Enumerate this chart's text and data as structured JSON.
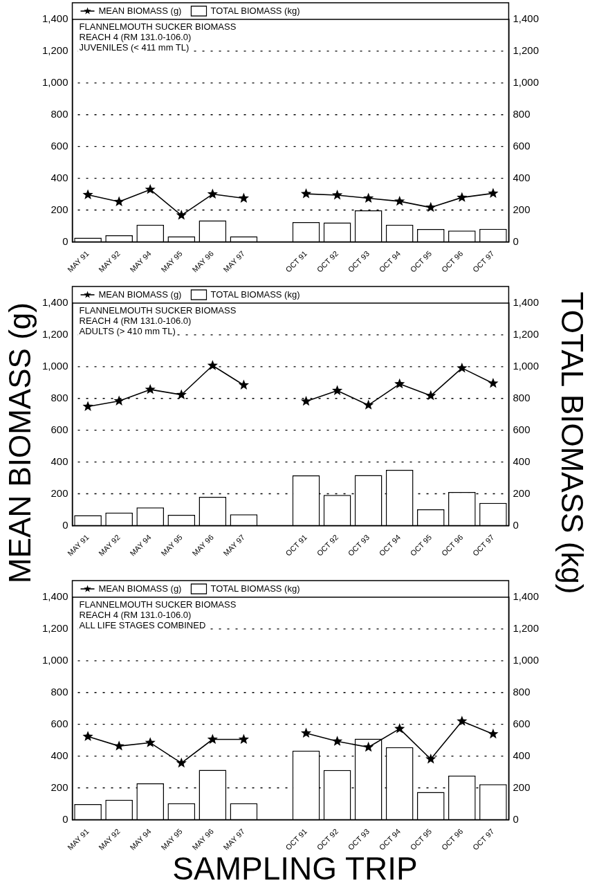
{
  "chart_data": [
    {
      "type": "bar",
      "title": "FLANNELMOUTH SUCKER BIOMASS",
      "subtitle": "REACH 4 (RM 131.0-106.0)",
      "annotations": [
        "JUVENILES (< 411 mm TL)"
      ],
      "categories": [
        "MAY 91",
        "MAY 92",
        "MAY 94",
        "MAY 95",
        "MAY 96",
        "MAY 97",
        null,
        "OCT 91",
        "OCT 92",
        "OCT 93",
        "OCT 94",
        "OCT 95",
        "OCT 96",
        "OCT 97"
      ],
      "series": [
        {
          "name": "MEAN BIOMASS (g)",
          "type": "line",
          "color": "#000000",
          "values": [
            296,
            252,
            329,
            167,
            300,
            274,
            null,
            302,
            294,
            274,
            255,
            216,
            279,
            305
          ]
        },
        {
          "name": "TOTAL BIOMASS (kg)",
          "type": "bar",
          "axis": "y2",
          "color": "#ffffff",
          "values": [
            26,
            41,
            107,
            35,
            135,
            35,
            null,
            124,
            122,
            198,
            107,
            80,
            70,
            81
          ]
        }
      ],
      "ylim": [
        0,
        1400
      ],
      "yticks": [
        0,
        200,
        400,
        600,
        800,
        {
          "value": 1000,
          "label": "1,000"
        },
        {
          "value": 1200,
          "label": "1,200"
        },
        {
          "value": 1400,
          "label": "1,400"
        }
      ],
      "y2lim": [
        0,
        1400
      ],
      "y2ticks": [
        0,
        200,
        400,
        600,
        800,
        {
          "value": 1000,
          "label": "1,000"
        },
        {
          "value": 1200,
          "label": "1,200"
        },
        {
          "value": 1400,
          "label": "1,400"
        }
      ],
      "grid": "y",
      "legend": "top",
      "marker": "star",
      "line_style": "solid"
    },
    {
      "type": "bar",
      "title": "FLANNELMOUTH SUCKER BIOMASS",
      "subtitle": "REACH 4 (RM 131.0-106.0)",
      "annotations": [
        "ADULTS (> 410 mm TL)"
      ],
      "ylabel": "MEAN BIOMASS (g)",
      "y2label": "TOTAL BIOMASS (kg)",
      "categories": [
        "MAY 91",
        "MAY 92",
        "MAY 94",
        "MAY 95",
        "MAY 96",
        "MAY 97",
        null,
        "OCT 91",
        "OCT 92",
        "OCT 93",
        "OCT 94",
        "OCT 95",
        "OCT 96",
        "OCT 97"
      ],
      "series": [
        {
          "name": "MEAN BIOMASS (g)",
          "type": "line",
          "color": "#000000",
          "values": [
            749,
            784,
            856,
            823,
            1007,
            884,
            null,
            782,
            849,
            758,
            891,
            817,
            991,
            895
          ]
        },
        {
          "name": "TOTAL BIOMASS (kg)",
          "type": "bar",
          "axis": "y2",
          "color": "#ffffff",
          "values": [
            65,
            81,
            114,
            67,
            181,
            70,
            null,
            315,
            192,
            318,
            350,
            102,
            211,
            142
          ]
        }
      ],
      "ylim": [
        0,
        1400
      ],
      "yticks": [
        0,
        200,
        400,
        600,
        800,
        {
          "value": 1000,
          "label": "1,000"
        },
        {
          "value": 1200,
          "label": "1,200"
        },
        {
          "value": 1400,
          "label": "1,400"
        }
      ],
      "y2lim": [
        0,
        1400
      ],
      "y2ticks": [
        0,
        200,
        400,
        600,
        800,
        {
          "value": 1000,
          "label": "1,000"
        },
        {
          "value": 1200,
          "label": "1,200"
        },
        {
          "value": 1400,
          "label": "1,400"
        }
      ],
      "grid": "y",
      "legend": "top",
      "marker": "star",
      "line_style": "solid"
    },
    {
      "type": "bar",
      "title": "FLANNELMOUTH SUCKER BIOMASS",
      "subtitle": "REACH 4 (RM 131.0-106.0)",
      "annotations": [
        "ALL LIFE STAGES COMBINED"
      ],
      "xlabel": "SAMPLING TRIP",
      "categories": [
        "MAY 91",
        "MAY 92",
        "MAY 94",
        "MAY 95",
        "MAY 96",
        "MAY 97",
        null,
        "OCT 91",
        "OCT 92",
        "OCT 93",
        "OCT 94",
        "OCT 95",
        "OCT 96",
        "OCT 97"
      ],
      "series": [
        {
          "name": "MEAN BIOMASS (g)",
          "type": "line",
          "color": "#000000",
          "values": [
            523,
            463,
            484,
            356,
            505,
            505,
            null,
            544,
            493,
            456,
            572,
            381,
            619,
            539
          ]
        },
        {
          "name": "TOTAL BIOMASS (kg)",
          "type": "bar",
          "axis": "y2",
          "color": "#ffffff",
          "values": [
            98,
            125,
            228,
            103,
            313,
            103,
            null,
            434,
            312,
            509,
            456,
            174,
            277,
            223
          ]
        }
      ],
      "ylim": [
        0,
        1400
      ],
      "yticks": [
        0,
        200,
        400,
        600,
        800,
        {
          "value": 1000,
          "label": "1,000"
        },
        {
          "value": 1200,
          "label": "1,200"
        },
        {
          "value": 1400,
          "label": "1,400"
        }
      ],
      "y2lim": [
        0,
        1400
      ],
      "y2ticks": [
        0,
        200,
        400,
        600,
        800,
        {
          "value": 1000,
          "label": "1,000"
        },
        {
          "value": 1200,
          "label": "1,200"
        },
        {
          "value": 1400,
          "label": "1,400"
        }
      ],
      "grid": "y",
      "legend": "top",
      "marker": "star",
      "line_style": "solid"
    }
  ]
}
